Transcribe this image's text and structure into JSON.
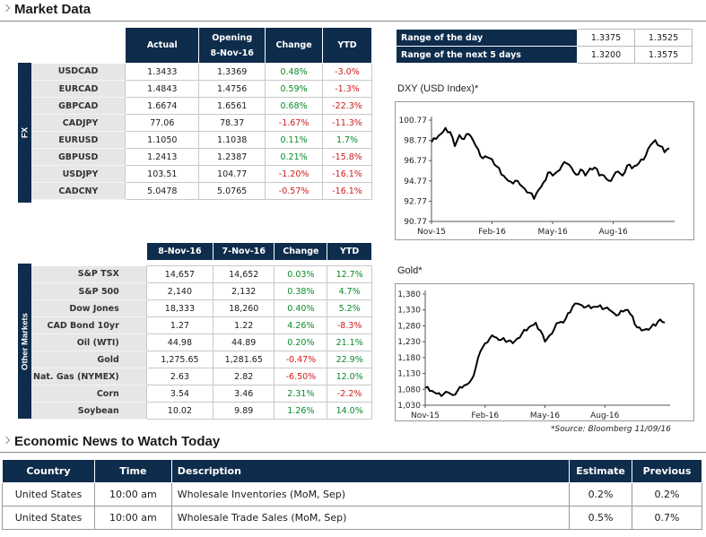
{
  "market_title": "Market Data",
  "fx": {
    "side_label": "FX",
    "headers": [
      "Actual",
      "Opening\n8-Nov-16",
      "Change",
      "YTD"
    ],
    "rows": [
      {
        "name": "USDCAD",
        "actual": "1.3433",
        "open": "1.3369",
        "change": "0.48%",
        "ytd": "-3.0%"
      },
      {
        "name": "EURCAD",
        "actual": "1.4843",
        "open": "1.4756",
        "change": "0.59%",
        "ytd": "-1.3%"
      },
      {
        "name": "GBPCAD",
        "actual": "1.6674",
        "open": "1.6561",
        "change": "0.68%",
        "ytd": "-22.3%"
      },
      {
        "name": "CADJPY",
        "actual": "77.06",
        "open": "78.37",
        "change": "-1.67%",
        "ytd": "-11.3%"
      },
      {
        "name": "EURUSD",
        "actual": "1.1050",
        "open": "1.1038",
        "change": "0.11%",
        "ytd": "1.7%"
      },
      {
        "name": "GBPUSD",
        "actual": "1.2413",
        "open": "1.2387",
        "change": "0.21%",
        "ytd": "-15.8%"
      },
      {
        "name": "USDJPY",
        "actual": "103.51",
        "open": "104.77",
        "change": "-1.20%",
        "ytd": "-16.1%"
      },
      {
        "name": "CADCNY",
        "actual": "5.0478",
        "open": "5.0765",
        "change": "-0.57%",
        "ytd": "-16.1%"
      }
    ]
  },
  "other": {
    "side_label": "Other Markets",
    "headers": [
      "8-Nov-16",
      "7-Nov-16",
      "Change",
      "YTD"
    ],
    "rows": [
      {
        "name": "S&P TSX",
        "a": "14,657",
        "b": "14,652",
        "change": "0.03%",
        "ytd": "12.7%"
      },
      {
        "name": "S&P 500",
        "a": "2,140",
        "b": "2,132",
        "change": "0.38%",
        "ytd": "4.7%"
      },
      {
        "name": "Dow Jones",
        "a": "18,333",
        "b": "18,260",
        "change": "0.40%",
        "ytd": "5.2%"
      },
      {
        "name": "CAD Bond 10yr",
        "a": "1.27",
        "b": "1.22",
        "change": "4.26%",
        "ytd": "-8.3%"
      },
      {
        "name": "Oil (WTI)",
        "a": "44.98",
        "b": "44.89",
        "change": "0.20%",
        "ytd": "21.1%"
      },
      {
        "name": "Gold",
        "a": "1,275.65",
        "b": "1,281.65",
        "change": "-0.47%",
        "ytd": "22.9%"
      },
      {
        "name": "Nat. Gas (NYMEX)",
        "a": "2.63",
        "b": "2.82",
        "change": "-6.50%",
        "ytd": "12.0%"
      },
      {
        "name": "Corn",
        "a": "3.54",
        "b": "3.46",
        "change": "2.31%",
        "ytd": "-2.2%"
      },
      {
        "name": "Soybean",
        "a": "10.02",
        "b": "9.89",
        "change": "1.26%",
        "ytd": "14.0%"
      }
    ]
  },
  "ranges": [
    {
      "label": "Range of the day",
      "low": "1.3375",
      "high": "1.3525"
    },
    {
      "label": "Range of the next 5 days",
      "low": "1.3200",
      "high": "1.3575"
    }
  ],
  "colors": {
    "navy": "#0e2c4c",
    "positive": "#0a8a2a",
    "negative": "#d11a1a",
    "line": "#000000"
  },
  "chart_data": [
    {
      "type": "line",
      "title": "DXY (USD Index)*",
      "ylim": [
        90.77,
        100.77
      ],
      "yticks": [
        "100.77",
        "98.77",
        "96.77",
        "94.77",
        "92.77",
        "90.77"
      ],
      "yticks_values": [
        100.77,
        98.77,
        96.77,
        94.77,
        92.77,
        90.77
      ],
      "xticks": [
        "Nov-15",
        "Feb-16",
        "May-16",
        "Aug-16"
      ],
      "xticks_index": [
        0,
        13,
        26,
        39
      ],
      "series": [
        {
          "values": [
            98.6,
            98.9,
            99.4,
            100.0,
            99.6,
            98.2,
            99.3,
            98.9,
            99.4,
            98.7,
            97.9,
            97.0,
            97.1,
            96.9,
            96.2,
            95.4,
            95.0,
            94.7,
            94.8,
            94.4,
            94.0,
            93.6,
            93.0,
            93.9,
            94.6,
            95.6,
            95.3,
            95.7,
            96.3,
            96.5,
            96.1,
            95.4,
            95.9,
            95.3,
            96.0,
            96.1,
            95.3,
            95.3,
            94.8,
            95.2,
            95.7,
            95.3,
            96.3,
            96.0,
            96.3,
            96.9,
            97.3,
            98.3,
            98.8,
            98.2,
            97.6,
            98.0
          ]
        }
      ]
    },
    {
      "type": "line",
      "title": "Gold*",
      "ylim": [
        1030,
        1380
      ],
      "yticks": [
        "1,380",
        "1,330",
        "1,280",
        "1,230",
        "1,180",
        "1,130",
        "1,080",
        "1,030"
      ],
      "yticks_values": [
        1380,
        1330,
        1280,
        1230,
        1180,
        1130,
        1080,
        1030
      ],
      "xticks": [
        "Nov-15",
        "Feb-16",
        "May-16",
        "Aug-16"
      ],
      "xticks_index": [
        0,
        13,
        26,
        39
      ],
      "series": [
        {
          "values": [
            1085,
            1075,
            1070,
            1068,
            1065,
            1070,
            1062,
            1075,
            1085,
            1095,
            1110,
            1150,
            1200,
            1225,
            1240,
            1245,
            1235,
            1242,
            1232,
            1225,
            1240,
            1255,
            1265,
            1280,
            1290,
            1265,
            1230,
            1250,
            1270,
            1290,
            1290,
            1320,
            1340,
            1350,
            1345,
            1340,
            1335,
            1340,
            1345,
            1335,
            1330,
            1320,
            1315,
            1325,
            1330,
            1310,
            1275,
            1265,
            1270,
            1275,
            1280,
            1300,
            1290
          ]
        }
      ]
    }
  ],
  "source": "*Source: Bloomberg  11/09/16",
  "news": {
    "title": "Economic News to Watch Today",
    "headers": [
      "Country",
      "Time",
      "Description",
      "Estimate",
      "Previous"
    ],
    "rows": [
      {
        "country": "United States",
        "time": "10:00 am",
        "desc": "Wholesale Inventories (MoM, Sep)",
        "est": "0.2%",
        "prev": "0.2%"
      },
      {
        "country": "United States",
        "time": "10:00 am",
        "desc": "Wholesale Trade Sales (MoM, Sep)",
        "est": "0.5%",
        "prev": "0.7%"
      }
    ]
  }
}
